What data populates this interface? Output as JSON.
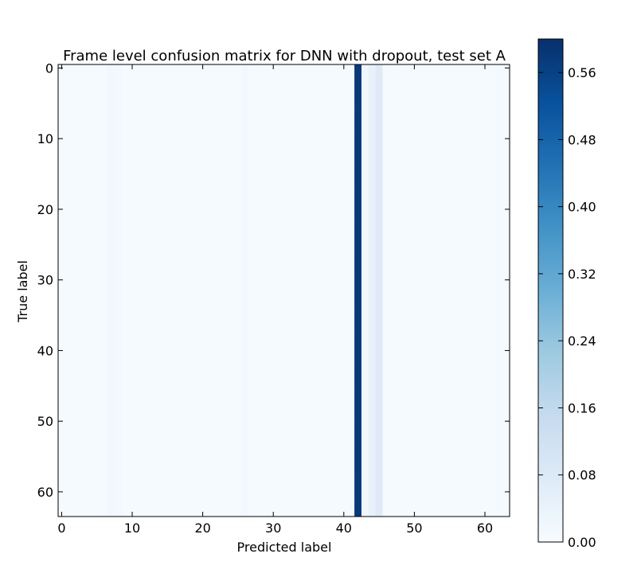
{
  "chart_data": {
    "type": "heatmap",
    "title": "Frame level confusion matrix for DNN with dropout, test set A",
    "xlabel": "Predicted label",
    "ylabel": "True label",
    "grid": false,
    "n_rows": 64,
    "n_cols": 64,
    "xlim": [
      -0.5,
      63.5
    ],
    "ylim": [
      -0.5,
      63.5
    ],
    "x_ticks": [
      0,
      10,
      20,
      30,
      40,
      50,
      60
    ],
    "y_ticks": [
      0,
      10,
      20,
      30,
      40,
      50,
      60
    ],
    "colormap": "Blues",
    "colormap_stops": [
      "#f7fbff",
      "#deebf7",
      "#c6dbef",
      "#9ecae1",
      "#6baed6",
      "#4292c6",
      "#2171b5",
      "#08519c",
      "#08306b"
    ],
    "vmin": 0.0,
    "vmax": 0.6,
    "colorbar_ticks": [
      0.0,
      0.08,
      0.16,
      0.24,
      0.32,
      0.4,
      0.48,
      0.56
    ],
    "colorbar_labels": [
      "0.00",
      "0.08",
      "0.16",
      "0.24",
      "0.32",
      "0.40",
      "0.48",
      "0.56"
    ],
    "background_value": 0.006,
    "column_values": [
      {
        "col": 7,
        "value": 0.018
      },
      {
        "col": 8,
        "value": 0.016
      },
      {
        "col": 26,
        "value": 0.012
      },
      {
        "col": 42,
        "value": 0.58
      },
      {
        "col": 43,
        "value": 0.025
      },
      {
        "col": 44,
        "value": 0.045
      },
      {
        "col": 45,
        "value": 0.075
      }
    ]
  }
}
